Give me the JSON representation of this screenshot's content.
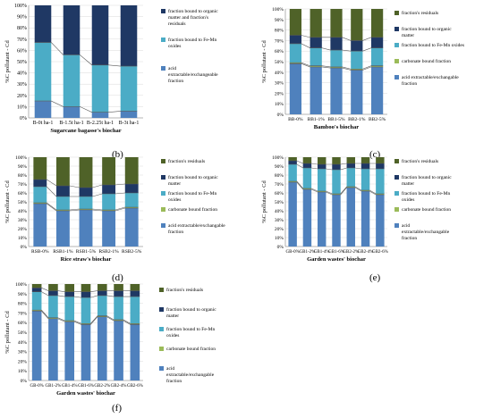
{
  "colors": {
    "acid": "#4f81bd",
    "carbonate": "#9bbb59",
    "femn": "#4bacc6",
    "organic": "#1f3864",
    "residual": "#4f6228"
  },
  "panels": [
    {
      "letter": "(b)",
      "ylabel": "%C pollutant - Cd",
      "xlabel": "Sugarcane bagasse's biochar",
      "yticks": [
        "0%",
        "10%",
        "20%",
        "30%",
        "40%",
        "50%",
        "60%",
        "70%",
        "80%",
        "90%",
        "100%"
      ],
      "legend": [
        {
          "key": "organic",
          "label": "fraction bound to organic matter and fraction's residuals"
        },
        {
          "key": "femn",
          "label": "fraction bound to Fe-Mn oxides"
        },
        {
          "key": "acid",
          "label": "acid extractable/exchangeable fraction"
        }
      ],
      "chart_data": {
        "type": "bar",
        "stacked": true,
        "categories": [
          "B-0t ha-1",
          "B-1.5t ha-1",
          "B-2.25t ha-1",
          "B-3t ha-1"
        ],
        "series": [
          {
            "key": "acid",
            "values": [
              15,
              10,
              5,
              6
            ]
          },
          {
            "key": "femn",
            "values": [
              52,
              46,
              42,
              40
            ]
          },
          {
            "key": "organic",
            "values": [
              33,
              44,
              53,
              54
            ]
          }
        ],
        "ylim": [
          0,
          100
        ]
      }
    },
    {
      "letter": "(c)",
      "ylabel": "%C pollutant - Cd",
      "xlabel": "Bamboo's biochar",
      "yticks": [
        "0%",
        "10%",
        "20%",
        "30%",
        "40%",
        "50%",
        "60%",
        "70%",
        "80%",
        "90%",
        "100%"
      ],
      "legend": [
        {
          "key": "residual",
          "label": "fraction's residuals"
        },
        {
          "key": "organic",
          "label": "fraction bound to organic matter"
        },
        {
          "key": "femn",
          "label": "fraction bound to Fe-Mn oxides"
        },
        {
          "key": "carbonate",
          "label": "carbonate bound fraction"
        },
        {
          "key": "acid",
          "label": "acid extractable/exchangable fraction"
        }
      ],
      "chart_data": {
        "type": "bar",
        "stacked": true,
        "categories": [
          "BB-0%",
          "BB1-1%",
          "BB1-5%",
          "BB2-1%",
          "BB2-5%"
        ],
        "series": [
          {
            "key": "acid",
            "values": [
              48,
              45,
              44,
              42,
              45
            ]
          },
          {
            "key": "carbonate",
            "values": [
              1,
              1,
              1,
              1,
              1
            ]
          },
          {
            "key": "femn",
            "values": [
              18,
              17,
              16,
              17,
              17
            ]
          },
          {
            "key": "organic",
            "values": [
              8,
              10,
              12,
              10,
              10
            ]
          },
          {
            "key": "residual",
            "values": [
              25,
              27,
              27,
              30,
              27
            ]
          }
        ],
        "ylim": [
          0,
          100
        ]
      }
    },
    {
      "letter": "(d)",
      "ylabel": "%C pollutant - Cd",
      "xlabel": "Rice straw's biochar",
      "yticks": [
        "0%",
        "10%",
        "20%",
        "30%",
        "40%",
        "50%",
        "60%",
        "70%",
        "80%",
        "90%",
        "100%"
      ],
      "legend": [
        {
          "key": "residual",
          "label": "fraction's residuals"
        },
        {
          "key": "organic",
          "label": "fraction bound to organic matter"
        },
        {
          "key": "femn",
          "label": "fraction bound to Fe-Mn oxides"
        },
        {
          "key": "carbonate",
          "label": "carbonate bound fraction"
        },
        {
          "key": "acid",
          "label": "acid extractable/exchangable fraction"
        }
      ],
      "chart_data": {
        "type": "bar",
        "stacked": true,
        "categories": [
          "RSB-0%",
          "RSB1-1%",
          "RSB1-5%",
          "RSB2-1%",
          "RSB2-5%"
        ],
        "series": [
          {
            "key": "acid",
            "values": [
              48,
              40,
              41,
              40,
              43
            ]
          },
          {
            "key": "carbonate",
            "values": [
              1,
              1,
              1,
              1,
              1
            ]
          },
          {
            "key": "femn",
            "values": [
              18,
              15,
              14,
              18,
              16
            ]
          },
          {
            "key": "organic",
            "values": [
              8,
              12,
              10,
              10,
              10
            ]
          },
          {
            "key": "residual",
            "values": [
              25,
              32,
              34,
              31,
              30
            ]
          }
        ],
        "ylim": [
          0,
          100
        ]
      }
    },
    {
      "letter": "(e)",
      "ylabel": "%C pollutant - Cd",
      "xlabel": "Garden wastes' biochar",
      "yticks": [
        "0%",
        "10%",
        "20%",
        "30%",
        "40%",
        "50%",
        "60%",
        "70%",
        "80%",
        "90%",
        "100%"
      ],
      "legend": [
        {
          "key": "residual",
          "label": "fraction's residuals"
        },
        {
          "key": "organic",
          "label": "fraction bound to organic matter"
        },
        {
          "key": "femn",
          "label": "fraction bound to Fe-Mn oxides"
        },
        {
          "key": "carbonate",
          "label": "carbonate bound fraction"
        },
        {
          "key": "acid",
          "label": "acid extractable/exchangable fraction"
        }
      ],
      "chart_data": {
        "type": "bar",
        "stacked": true,
        "categories": [
          "GB-0%",
          "GB1-2%",
          "GB1-4%",
          "GB1-6%",
          "GB2-2%",
          "GB2-4%",
          "GB2-6%"
        ],
        "series": [
          {
            "key": "acid",
            "values": [
              72,
              64,
              61,
              58,
              66,
              62,
              58
            ]
          },
          {
            "key": "carbonate",
            "values": [
              1,
              1,
              1,
              1,
              1,
              1,
              1
            ]
          },
          {
            "key": "femn",
            "values": [
              19,
              23,
              25,
              27,
              21,
              24,
              28
            ]
          },
          {
            "key": "organic",
            "values": [
              4,
              5,
              5,
              6,
              5,
              6,
              6
            ]
          },
          {
            "key": "residual",
            "values": [
              4,
              7,
              8,
              8,
              7,
              7,
              7
            ]
          }
        ],
        "ylim": [
          0,
          100
        ]
      }
    },
    {
      "letter": "(f)",
      "ylabel": "%C pollutant - Cd",
      "xlabel": "Garden wastes' biochar",
      "yticks": [
        "0%",
        "10%",
        "20%",
        "30%",
        "40%",
        "50%",
        "60%",
        "70%",
        "80%",
        "90%",
        "100%"
      ],
      "legend": [
        {
          "key": "residual",
          "label": "fraction's residuals"
        },
        {
          "key": "organic",
          "label": "fraction bound to organic matter"
        },
        {
          "key": "femn",
          "label": "fraction bound to Fe-Mn oxides"
        },
        {
          "key": "carbonate",
          "label": "carbonate bound fraction"
        },
        {
          "key": "acid",
          "label": "acid extractable/exchangable fraction"
        }
      ],
      "chart_data": {
        "type": "bar",
        "stacked": true,
        "categories": [
          "GB-0%",
          "GB1-2%",
          "GB1-4%",
          "GB1-6%",
          "GB2-2%",
          "GB2-4%",
          "GB2-6%"
        ],
        "series": [
          {
            "key": "acid",
            "values": [
              72,
              64,
              61,
              58,
              66,
              62,
              58
            ]
          },
          {
            "key": "carbonate",
            "values": [
              1,
              1,
              1,
              1,
              1,
              1,
              1
            ]
          },
          {
            "key": "femn",
            "values": [
              19,
              23,
              25,
              27,
              21,
              24,
              28
            ]
          },
          {
            "key": "organic",
            "values": [
              4,
              5,
              5,
              6,
              5,
              6,
              6
            ]
          },
          {
            "key": "residual",
            "values": [
              4,
              7,
              8,
              8,
              7,
              7,
              7
            ]
          }
        ],
        "ylim": [
          0,
          100
        ]
      }
    }
  ]
}
